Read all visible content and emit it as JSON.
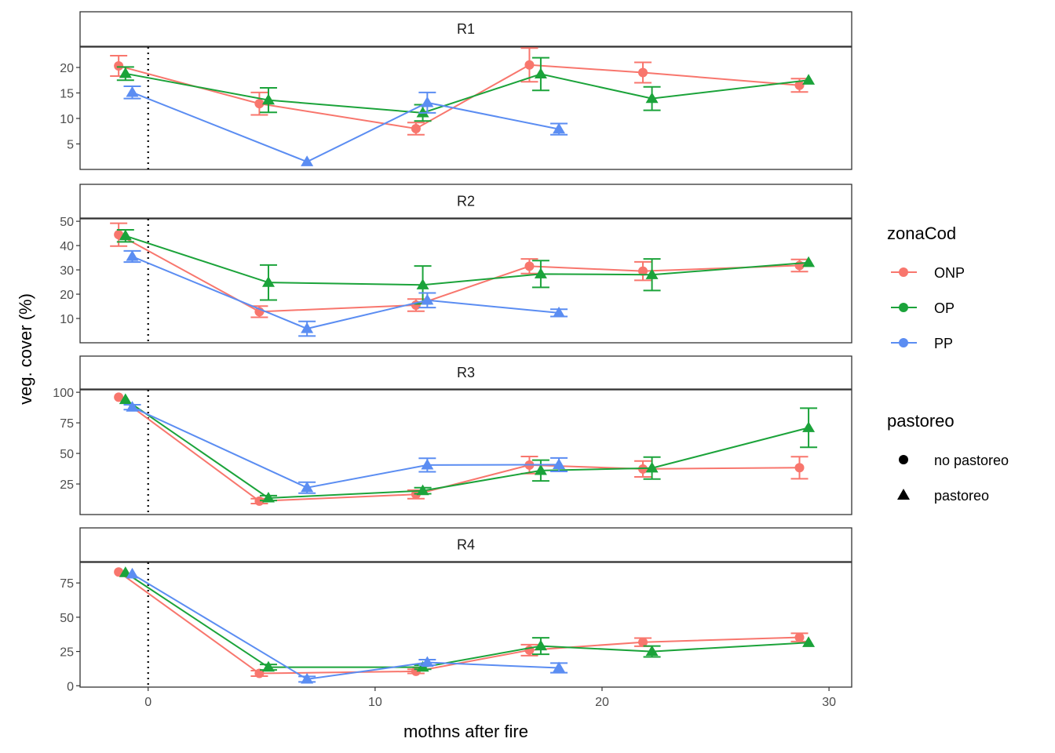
{
  "chart_data": {
    "type": "line",
    "xlabel": "mothns after fire",
    "ylabel": "veg. cover (%)",
    "xlim": [
      -3,
      31
    ],
    "xticks": [
      0,
      10,
      20,
      30
    ],
    "reference_line_x": 0,
    "facets": [
      {
        "label": "R1",
        "ylim": [
          0,
          24
        ],
        "yticks": [
          5,
          10,
          15,
          20
        ],
        "series": [
          {
            "zona": "ONP",
            "shape": "circle",
            "x": [
              -1.3,
              4.9,
              11.8,
              16.8,
              21.8,
              28.7
            ],
            "y": [
              20.3,
              12.9,
              8.0,
              20.5,
              19.0,
              16.5
            ],
            "err": [
              2.0,
              2.2,
              1.2,
              3.3,
              2.0,
              1.3
            ]
          },
          {
            "zona": "OP",
            "shape": "triangle",
            "x": [
              -1.0,
              5.3,
              12.1,
              17.3,
              22.2,
              29.1
            ],
            "y": [
              18.8,
              13.6,
              11.1,
              18.7,
              13.9,
              17.5
            ],
            "err": [
              1.3,
              2.4,
              1.6,
              3.2,
              2.3,
              0
            ]
          },
          {
            "zona": "PP",
            "shape": "triangle",
            "x": [
              -0.7,
              7.0,
              12.3,
              18.1
            ],
            "y": [
              15.1,
              1.5,
              13.1,
              7.9
            ],
            "err": [
              1.2,
              0,
              2.0,
              1.1
            ]
          }
        ]
      },
      {
        "label": "R2",
        "ylim": [
          0,
          51
        ],
        "yticks": [
          10,
          20,
          30,
          40,
          50
        ],
        "series": [
          {
            "zona": "ONP",
            "shape": "circle",
            "x": [
              -1.3,
              4.9,
              11.8,
              16.8,
              21.8,
              28.7
            ],
            "y": [
              44.5,
              12.8,
              15.5,
              31.5,
              29.5,
              31.8
            ],
            "err": [
              4.7,
              2.3,
              2.5,
              3.0,
              3.8,
              2.5
            ]
          },
          {
            "zona": "OP",
            "shape": "triangle",
            "x": [
              -1.0,
              5.3,
              12.1,
              17.3,
              22.2,
              29.1
            ],
            "y": [
              44.0,
              24.8,
              23.8,
              28.3,
              28.0,
              33.0
            ],
            "err": [
              2.5,
              7.2,
              7.8,
              5.5,
              6.5,
              0
            ]
          },
          {
            "zona": "PP",
            "shape": "triangle",
            "x": [
              -0.7,
              7.0,
              12.3,
              18.1
            ],
            "y": [
              35.5,
              5.8,
              17.5,
              12.3
            ],
            "err": [
              2.3,
              3.0,
              3.0,
              1.5
            ]
          }
        ]
      },
      {
        "label": "R3",
        "ylim": [
          0,
          102
        ],
        "yticks": [
          25,
          50,
          75,
          100
        ],
        "series": [
          {
            "zona": "ONP",
            "shape": "circle",
            "x": [
              -1.3,
              4.9,
              11.8,
              16.8,
              21.8,
              28.7
            ],
            "y": [
              96.0,
              11.0,
              16.5,
              40.5,
              37.3,
              38.3
            ],
            "err": [
              0,
              2.0,
              3.5,
              7.0,
              6.5,
              9.0
            ]
          },
          {
            "zona": "OP",
            "shape": "triangle",
            "x": [
              -1.0,
              5.3,
              12.1,
              17.3,
              22.2,
              29.1
            ],
            "y": [
              94.0,
              13.5,
              19.5,
              36.0,
              38.0,
              71.0
            ],
            "err": [
              0,
              2.0,
              2.5,
              8.5,
              9.0,
              16.0
            ]
          },
          {
            "zona": "PP",
            "shape": "triangle",
            "x": [
              -0.7,
              7.0,
              12.3,
              18.1
            ],
            "y": [
              87.8,
              22.0,
              40.5,
              40.8
            ],
            "err": [
              2.0,
              4.5,
              5.5,
              5.5
            ]
          }
        ]
      },
      {
        "label": "R4",
        "ylim": [
          -1,
          90
        ],
        "yticks": [
          0,
          25,
          50,
          75
        ],
        "series": [
          {
            "zona": "ONP",
            "shape": "circle",
            "x": [
              -1.3,
              4.9,
              11.8,
              16.8,
              21.8,
              28.7
            ],
            "y": [
              83.0,
              9.0,
              10.5,
              26.0,
              31.8,
              35.3
            ],
            "err": [
              0,
              2.0,
              1.5,
              4.0,
              3.0,
              3.0
            ]
          },
          {
            "zona": "OP",
            "shape": "triangle",
            "x": [
              -1.0,
              5.3,
              12.1,
              17.3,
              22.2,
              29.1
            ],
            "y": [
              82.5,
              13.5,
              13.5,
              29.0,
              25.0,
              31.5
            ],
            "err": [
              0,
              2.0,
              1.5,
              6.0,
              4.0,
              0
            ]
          },
          {
            "zona": "PP",
            "shape": "triangle",
            "x": [
              -0.7,
              7.0,
              12.3,
              18.1
            ],
            "y": [
              81.5,
              4.8,
              17.0,
              13.0
            ],
            "err": [
              0,
              2.0,
              2.0,
              3.5
            ]
          }
        ]
      }
    ],
    "legend": {
      "placement": "right",
      "color_title": "zonaCod",
      "color_entries": [
        "ONP",
        "OP",
        "PP"
      ],
      "shape_title": "pastoreo",
      "shape_entries": [
        {
          "label": "no pastoreo",
          "shape": "circle"
        },
        {
          "label": "pastoreo",
          "shape": "triangle"
        }
      ]
    },
    "colors": {
      "ONP": "#F8766D",
      "OP": "#1BA33A",
      "PP": "#5B8DF2"
    },
    "grid": false
  }
}
